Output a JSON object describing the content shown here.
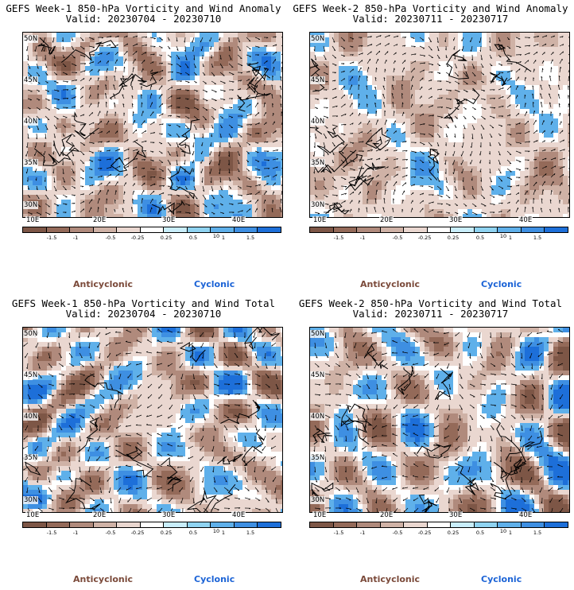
{
  "panels": [
    {
      "title_line1": "GEFS Week-1 850-hPa Vorticity and Wind Anomaly",
      "title_line2": "Valid: 20230704 - 20230710"
    },
    {
      "title_line1": "GEFS Week-2 850-hPa Vorticity and Wind Anomaly",
      "title_line2": "Valid: 20230711 - 20230717"
    },
    {
      "title_line1": "GEFS Week-1 850-hPa Vorticity and Wind Total",
      "title_line2": "Valid: 20230704 - 20230710"
    },
    {
      "title_line1": "GEFS Week-2 850-hPa Vorticity and Wind Total",
      "title_line2": "Valid: 20230711 - 20230717"
    }
  ],
  "axes": {
    "lat_labels": [
      "50N",
      "45N",
      "40N",
      "35N",
      "30N"
    ],
    "lon_labels": [
      "10E",
      "20E",
      "30E",
      "40E"
    ]
  },
  "colorbar": {
    "ticks": [
      "-1.5",
      "-1",
      "-0.5",
      "-0.25",
      "0.25",
      "0.5",
      "1",
      "1.5"
    ],
    "scale_marker": "10",
    "colors": [
      "#7d5646",
      "#946a59",
      "#b08a7c",
      "#cfb2a6",
      "#ead7d0",
      "#ffffff",
      "#c9eefb",
      "#8fd3f1",
      "#5fb0ea",
      "#3e8fe2",
      "#1d6fd9"
    ]
  },
  "legend": {
    "anticyclonic": "Anticyclonic",
    "cyclonic": "Cyclonic"
  }
}
